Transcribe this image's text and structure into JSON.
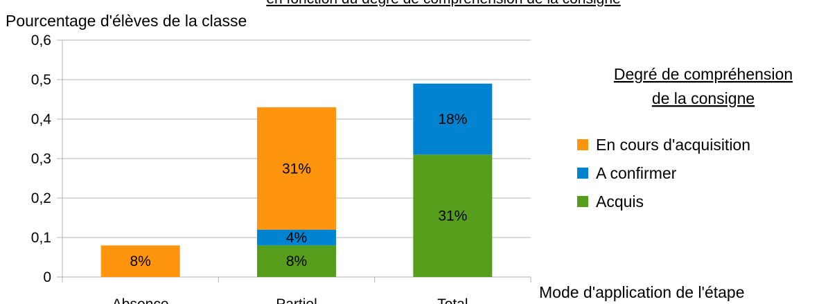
{
  "chart_data": {
    "type": "stacked_bar",
    "title": "en fonction du degré de compréhension de la consigne",
    "y_label": "Pourcentage d'élèves de la classe",
    "x_label": "Mode d'application de l'étape",
    "legend_title": [
      "Degré de compréhension",
      "de la consigne"
    ],
    "categories": [
      "Absence",
      "Partiel",
      "Total"
    ],
    "series": [
      {
        "name": "Acquis",
        "color": "#579d1c",
        "values": [
          null,
          0.08,
          0.31
        ],
        "value_labels": [
          null,
          "8%",
          "31%"
        ]
      },
      {
        "name": "A confirmer",
        "color": "#0084d1",
        "values": [
          null,
          0.04,
          0.18
        ],
        "value_labels": [
          null,
          "4%",
          "18%"
        ]
      },
      {
        "name": "En cours d'acquisition",
        "color": "#ff950e",
        "values": [
          0.08,
          0.31,
          null
        ],
        "value_labels": [
          "8%",
          "31%",
          null
        ]
      }
    ],
    "ylim": [
      0,
      0.6
    ],
    "yticks": [
      0,
      {
        "value": 0.1,
        "label": "0,1"
      },
      {
        "value": 0.2,
        "label": "0,2"
      },
      {
        "value": 0.3,
        "label": "0,3"
      },
      {
        "value": 0.4,
        "label": "0,4"
      },
      {
        "value": 0.5,
        "label": "0,5"
      },
      {
        "value": 0.6,
        "label": "0,6"
      }
    ],
    "grid": true,
    "legend": "right"
  }
}
